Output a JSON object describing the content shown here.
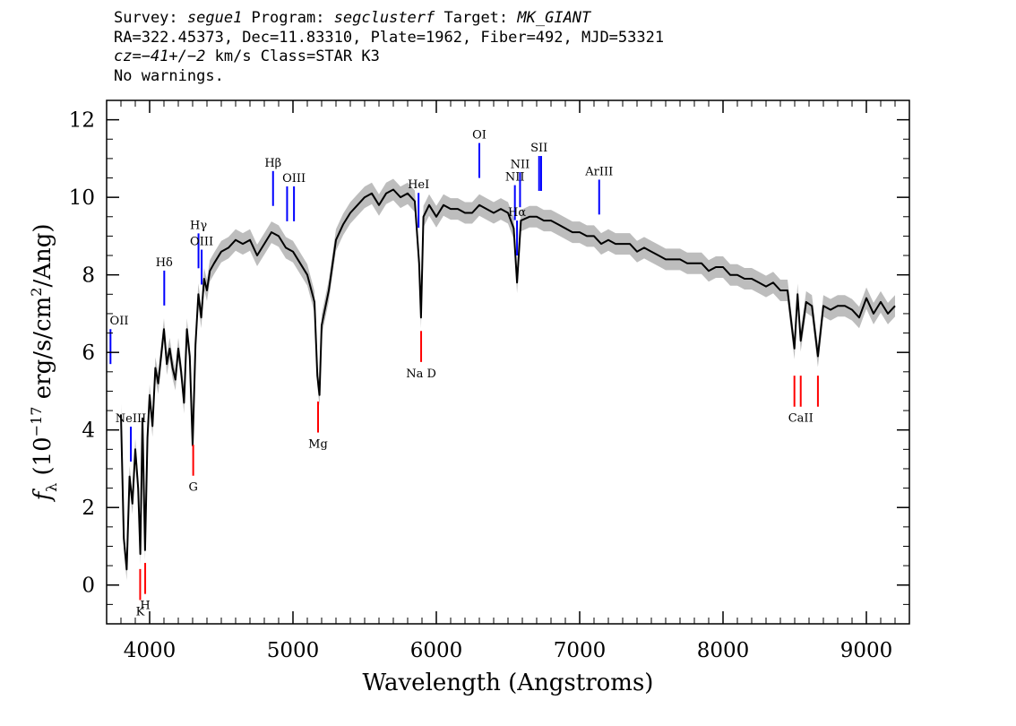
{
  "header": {
    "survey_label": "Survey: ",
    "survey": "segue1",
    "program_label": " Program: ",
    "program": "segclusterf",
    "target_label": " Target: ",
    "target": "MK_GIANT",
    "line2": "RA=322.45373, Dec=11.83310, Plate=1962, Fiber=492, MJD=53321",
    "cz_label": "cz=",
    "cz_value": "−41+/−2",
    "cz_rest": " km/s Class=STAR K3",
    "line4": "No warnings."
  },
  "chart_data": {
    "type": "line",
    "title": "",
    "xlabel": "Wavelength (Angstroms)",
    "ylabel_parts": [
      "f",
      "λ",
      " (10",
      "−17",
      " erg/s/cm",
      "2",
      "/Ang)"
    ],
    "xlim": [
      3700,
      9300
    ],
    "ylim": [
      -1,
      12.5
    ],
    "xticks": [
      4000,
      5000,
      6000,
      7000,
      8000,
      9000
    ],
    "yticks": [
      0,
      2,
      4,
      6,
      8,
      10,
      12
    ],
    "grid": false,
    "colors": {
      "flux": "#000000",
      "error_band": "#bdbdbd",
      "emission": "#0000ff",
      "absorption": "#ff0000"
    },
    "series": [
      {
        "x": [
          3800,
          3820,
          3840,
          3860,
          3880,
          3900,
          3920,
          3935,
          3950,
          3968,
          3985,
          4000,
          4020,
          4040,
          4060,
          4080,
          4100,
          4120,
          4140,
          4160,
          4180,
          4200,
          4220,
          4240,
          4260,
          4280,
          4300,
          4320,
          4340,
          4360,
          4380,
          4400,
          4420,
          4450,
          4500,
          4550,
          4600,
          4650,
          4700,
          4750,
          4800,
          4850,
          4900,
          4950,
          5000,
          5050,
          5100,
          5150,
          5170,
          5185,
          5200,
          5250,
          5300,
          5350,
          5400,
          5450,
          5500,
          5550,
          5600,
          5650,
          5700,
          5750,
          5800,
          5850,
          5880,
          5893,
          5910,
          5950,
          6000,
          6050,
          6100,
          6150,
          6200,
          6250,
          6300,
          6350,
          6400,
          6450,
          6500,
          6540,
          6563,
          6590,
          6650,
          6700,
          6750,
          6800,
          6850,
          6900,
          6950,
          7000,
          7050,
          7100,
          7150,
          7200,
          7250,
          7300,
          7350,
          7400,
          7450,
          7500,
          7550,
          7600,
          7650,
          7700,
          7750,
          7800,
          7850,
          7900,
          7950,
          8000,
          8050,
          8100,
          8150,
          8200,
          8250,
          8300,
          8350,
          8400,
          8450,
          8498,
          8520,
          8542,
          8580,
          8620,
          8662,
          8700,
          8750,
          8800,
          8850,
          8900,
          8950,
          9000,
          9050,
          9100,
          9150,
          9200
        ],
        "y": [
          4.4,
          1.2,
          0.4,
          2.8,
          2.1,
          3.5,
          2.5,
          0.8,
          4.3,
          0.9,
          3.8,
          4.9,
          4.1,
          5.6,
          5.2,
          5.9,
          6.6,
          5.7,
          6.1,
          5.6,
          5.3,
          6.1,
          5.5,
          4.7,
          6.6,
          5.9,
          3.6,
          6.2,
          7.5,
          6.9,
          7.9,
          7.6,
          8.1,
          8.3,
          8.6,
          8.7,
          8.9,
          8.8,
          8.9,
          8.5,
          8.8,
          9.1,
          9.0,
          8.7,
          8.6,
          8.3,
          8.0,
          7.3,
          5.4,
          4.9,
          6.7,
          7.6,
          8.9,
          9.3,
          9.6,
          9.8,
          10.0,
          10.1,
          9.8,
          10.1,
          10.2,
          10.0,
          10.1,
          9.9,
          8.3,
          6.9,
          9.5,
          9.8,
          9.5,
          9.8,
          9.7,
          9.7,
          9.6,
          9.6,
          9.8,
          9.7,
          9.6,
          9.7,
          9.6,
          9.2,
          7.8,
          9.4,
          9.5,
          9.5,
          9.4,
          9.4,
          9.3,
          9.2,
          9.1,
          9.1,
          9.0,
          9.0,
          8.8,
          8.9,
          8.8,
          8.8,
          8.8,
          8.6,
          8.7,
          8.6,
          8.5,
          8.4,
          8.4,
          8.4,
          8.3,
          8.3,
          8.3,
          8.1,
          8.2,
          8.2,
          8.0,
          8.0,
          7.9,
          7.9,
          7.8,
          7.7,
          7.8,
          7.6,
          7.6,
          6.1,
          7.5,
          6.3,
          7.3,
          7.2,
          5.9,
          7.2,
          7.1,
          7.2,
          7.2,
          7.1,
          6.9,
          7.4,
          7.0,
          7.3,
          7.0,
          7.2
        ]
      }
    ],
    "emission_lines": [
      {
        "label": "OII",
        "x": 3727
      },
      {
        "label": "NeIII",
        "x": 3869
      },
      {
        "label": "Hδ",
        "x": 4102
      },
      {
        "label": "Hγ",
        "x": 4341
      },
      {
        "label": "OIII",
        "x": 4363
      },
      {
        "label": "Hβ",
        "x": 4861
      },
      {
        "label": "OIII",
        "x": 5007,
        "x2": 4959
      },
      {
        "label": "HeI",
        "x": 5876
      },
      {
        "label": "OI",
        "x": 6300
      },
      {
        "label": "NII",
        "x": 6548
      },
      {
        "label": "Hα",
        "x": 6563
      },
      {
        "label": "NII",
        "x": 6584
      },
      {
        "label": "SII",
        "x": 6717,
        "x2": 6731
      },
      {
        "label": "ArIII",
        "x": 7136
      }
    ],
    "absorption_lines": [
      {
        "label": "K",
        "x": 3934
      },
      {
        "label": "H",
        "x": 3969
      },
      {
        "label": "G",
        "x": 4304
      },
      {
        "label": "Mg",
        "x": 5175
      },
      {
        "label": "Na D",
        "x": 5894
      },
      {
        "label": "CaII",
        "x": 8542,
        "xs": [
          8498,
          8542,
          8662
        ]
      }
    ]
  }
}
